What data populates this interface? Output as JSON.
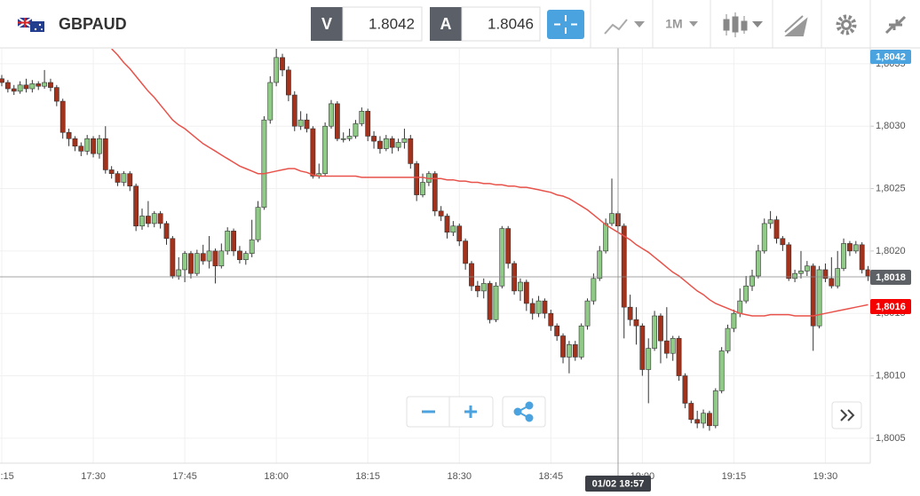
{
  "header": {
    "symbol": "GBPAUD",
    "bid_label": "V",
    "bid": "1.8042",
    "ask_label": "A",
    "ask": "1.8046",
    "timeframe": "1M"
  },
  "price_labels": {
    "top": "1,8042",
    "crosshair": "1,8018",
    "last": "1,8016"
  },
  "crosshair_time": "01/02 18:57",
  "chart_data": {
    "type": "candlestick",
    "categories": [
      "17:15",
      null,
      null,
      null,
      null,
      null,
      null,
      null,
      null,
      null,
      null,
      null,
      null,
      null,
      null,
      "17:30",
      null,
      null,
      null,
      null,
      null,
      null,
      null,
      null,
      null,
      null,
      null,
      null,
      null,
      null,
      "17:45",
      null,
      null,
      null,
      null,
      null,
      null,
      null,
      null,
      null,
      null,
      null,
      null,
      null,
      null,
      "18:00",
      null,
      null,
      null,
      null,
      null,
      null,
      null,
      null,
      null,
      null,
      null,
      null,
      null,
      null,
      "18:15",
      null,
      null,
      null,
      null,
      null,
      null,
      null,
      null,
      null,
      null,
      null,
      null,
      null,
      null,
      "18:30",
      null,
      null,
      null,
      null,
      null,
      null,
      null,
      null,
      null,
      null,
      null,
      null,
      null,
      null,
      "18:45",
      null,
      null,
      null,
      null,
      null,
      null,
      null,
      null,
      null,
      null,
      null,
      null,
      null,
      null,
      "19:00",
      null,
      null,
      null,
      null,
      null,
      null,
      null,
      null,
      null,
      null,
      null,
      null,
      null,
      null,
      "19:15",
      null,
      null,
      null,
      null,
      null,
      null,
      null,
      null,
      null,
      null,
      null,
      null,
      null,
      null,
      "19:30",
      null,
      null,
      null,
      null,
      null,
      null,
      null
    ],
    "open": [
      1.80338,
      1.80335,
      1.8033,
      1.80328,
      1.80333,
      1.8033,
      1.80334,
      1.80332,
      1.80335,
      1.80331,
      1.8032,
      1.80295,
      1.8029,
      1.80284,
      1.8028,
      1.8029,
      1.80278,
      1.8029,
      1.80265,
      1.80262,
      1.80255,
      1.80262,
      1.80252,
      1.8022,
      1.80228,
      1.80222,
      1.8023,
      1.80222,
      1.8021,
      1.8018,
      1.80185,
      1.80198,
      1.80182,
      1.80198,
      1.80192,
      1.802,
      1.80188,
      1.802,
      1.80216,
      1.802,
      1.80193,
      1.80198,
      1.80209,
      1.80235,
      1.80305,
      1.80335,
      1.80355,
      1.80345,
      1.80325,
      1.803,
      1.80305,
      1.80298,
      1.8026,
      1.80262,
      1.803,
      1.80318,
      1.8029,
      1.8029,
      1.80292,
      1.80302,
      1.80312,
      1.80292,
      1.80288,
      1.80282,
      1.8029,
      1.80283,
      1.80287,
      1.8029,
      1.8027,
      1.80245,
      1.80255,
      1.80262,
      1.80232,
      1.80228,
      1.80215,
      1.8022,
      1.80208,
      1.8019,
      1.80172,
      1.80168,
      1.80174,
      1.80145,
      1.80172,
      1.80218,
      1.8019,
      1.80168,
      1.80175,
      1.80158,
      1.8015,
      1.8016,
      1.8015,
      1.8014,
      1.80132,
      1.80115,
      1.80125,
      1.80115,
      1.8014,
      1.8016,
      1.80178,
      1.802,
      1.80222,
      1.8023,
      1.8022,
      1.80155,
      1.80145,
      1.8014,
      1.80105,
      1.80122,
      1.80148,
      1.80128,
      1.80118,
      1.8013,
      1.801,
      1.80078,
      1.80065,
      1.80062,
      1.8007,
      1.8006,
      1.80088,
      1.8012,
      1.80138,
      1.8015,
      1.8016,
      1.80172,
      1.8018,
      1.802,
      1.80222,
      1.80225,
      1.8021,
      1.80205,
      1.80178,
      1.80182,
      1.80184,
      1.80188,
      1.8014,
      1.80185,
      1.80178,
      1.80172,
      1.80186,
      1.80206,
      1.802,
      1.80205,
      1.80185
    ],
    "close": [
      1.80335,
      1.8033,
      1.80328,
      1.80333,
      1.8033,
      1.80334,
      1.80332,
      1.80335,
      1.80331,
      1.8032,
      1.80295,
      1.8029,
      1.80284,
      1.8028,
      1.8029,
      1.80278,
      1.8029,
      1.80265,
      1.80262,
      1.80255,
      1.80262,
      1.80252,
      1.8022,
      1.80228,
      1.80222,
      1.8023,
      1.80222,
      1.8021,
      1.8018,
      1.80185,
      1.80198,
      1.80182,
      1.80198,
      1.80192,
      1.802,
      1.80188,
      1.802,
      1.80216,
      1.802,
      1.80193,
      1.80198,
      1.80209,
      1.80235,
      1.80305,
      1.80335,
      1.80355,
      1.80345,
      1.80325,
      1.803,
      1.80305,
      1.80298,
      1.8026,
      1.80262,
      1.803,
      1.80318,
      1.8029,
      1.8029,
      1.80292,
      1.80302,
      1.80312,
      1.80292,
      1.80288,
      1.80282,
      1.8029,
      1.80283,
      1.80287,
      1.8029,
      1.8027,
      1.80245,
      1.80255,
      1.80262,
      1.80232,
      1.80228,
      1.80215,
      1.8022,
      1.80208,
      1.8019,
      1.80172,
      1.80168,
      1.80174,
      1.80145,
      1.80172,
      1.80218,
      1.8019,
      1.80168,
      1.80175,
      1.80158,
      1.8015,
      1.8016,
      1.8015,
      1.8014,
      1.80132,
      1.80115,
      1.80125,
      1.80115,
      1.8014,
      1.8016,
      1.80178,
      1.802,
      1.80222,
      1.8023,
      1.8022,
      1.80155,
      1.80145,
      1.8014,
      1.80105,
      1.80122,
      1.80148,
      1.80128,
      1.80118,
      1.8013,
      1.801,
      1.80078,
      1.80065,
      1.80062,
      1.8007,
      1.8006,
      1.80088,
      1.8012,
      1.80138,
      1.8015,
      1.8016,
      1.80172,
      1.8018,
      1.802,
      1.80222,
      1.80225,
      1.8021,
      1.80205,
      1.80178,
      1.80182,
      1.80184,
      1.80188,
      1.8014,
      1.80185,
      1.80178,
      1.80172,
      1.80186,
      1.80206,
      1.802,
      1.80205,
      1.80185,
      1.8018
    ],
    "high": [
      1.80341,
      1.80337,
      1.80333,
      1.80336,
      1.80338,
      1.80337,
      1.80336,
      1.80345,
      1.80338,
      1.80333,
      1.80322,
      1.80298,
      1.80292,
      1.80287,
      1.80293,
      1.80292,
      1.80293,
      1.803,
      1.80268,
      1.80264,
      1.80264,
      1.80264,
      1.80254,
      1.80234,
      1.8024,
      1.80232,
      1.80232,
      1.80224,
      1.80212,
      1.80195,
      1.802,
      1.802,
      1.80201,
      1.80205,
      1.80212,
      1.80202,
      1.80206,
      1.80219,
      1.80218,
      1.80204,
      1.802,
      1.80225,
      1.8024,
      1.80308,
      1.8034,
      1.80362,
      1.80358,
      1.80348,
      1.80328,
      1.80312,
      1.8031,
      1.803,
      1.8027,
      1.80303,
      1.80321,
      1.8032,
      1.80295,
      1.80298,
      1.80305,
      1.80315,
      1.80314,
      1.80296,
      1.80292,
      1.80293,
      1.80292,
      1.8029,
      1.80298,
      1.80293,
      1.80272,
      1.80262,
      1.80264,
      1.80264,
      1.80236,
      1.8023,
      1.80224,
      1.80222,
      1.8021,
      1.80192,
      1.80176,
      1.80178,
      1.80176,
      1.80175,
      1.8022,
      1.8022,
      1.80192,
      1.80178,
      1.80177,
      1.80162,
      1.80164,
      1.80162,
      1.80153,
      1.80142,
      1.80134,
      1.80128,
      1.80128,
      1.80142,
      1.80162,
      1.80182,
      1.80204,
      1.80226,
      1.80258,
      1.80232,
      1.80222,
      1.80165,
      1.80155,
      1.80142,
      1.8013,
      1.80152,
      1.8015,
      1.80155,
      1.80132,
      1.80132,
      1.80102,
      1.8008,
      1.80072,
      1.80073,
      1.80072,
      1.8009,
      1.80123,
      1.80141,
      1.80153,
      1.8017,
      1.8018,
      1.80185,
      1.80205,
      1.80226,
      1.80232,
      1.80228,
      1.80212,
      1.80207,
      1.80185,
      1.802,
      1.80192,
      1.8019,
      1.80188,
      1.8019,
      1.80195,
      1.802,
      1.8021,
      1.80208,
      1.80208,
      1.80207,
      1.80188
    ],
    "low": [
      1.80332,
      1.80327,
      1.80325,
      1.80326,
      1.80327,
      1.80327,
      1.80329,
      1.8033,
      1.80328,
      1.80316,
      1.8029,
      1.80284,
      1.8028,
      1.80276,
      1.80277,
      1.80275,
      1.80274,
      1.80262,
      1.80258,
      1.80252,
      1.80252,
      1.80248,
      1.80216,
      1.80217,
      1.80219,
      1.80219,
      1.80218,
      1.80205,
      1.80178,
      1.80177,
      1.80175,
      1.80178,
      1.8018,
      1.80189,
      1.80186,
      1.80174,
      1.80186,
      1.80197,
      1.80196,
      1.8019,
      1.80189,
      1.80195,
      1.80207,
      1.80233,
      1.80302,
      1.80332,
      1.8034,
      1.8032,
      1.80296,
      1.80297,
      1.80295,
      1.80258,
      1.80258,
      1.8026,
      1.80298,
      1.80288,
      1.80287,
      1.80288,
      1.8029,
      1.803,
      1.80288,
      1.80282,
      1.80278,
      1.8028,
      1.80278,
      1.8028,
      1.80282,
      1.80266,
      1.8024,
      1.80243,
      1.80252,
      1.80228,
      1.80224,
      1.8021,
      1.80212,
      1.80204,
      1.80185,
      1.80168,
      1.80163,
      1.80162,
      1.80142,
      1.80143,
      1.8017,
      1.80186,
      1.80165,
      1.8016,
      1.80152,
      1.80145,
      1.80147,
      1.80146,
      1.80136,
      1.80128,
      1.8011,
      1.80102,
      1.80112,
      1.80113,
      1.80137,
      1.80157,
      1.80176,
      1.80198,
      1.8022,
      1.80215,
      1.8013,
      1.8014,
      1.80125,
      1.801,
      1.80078,
      1.8012,
      1.8011,
      1.80114,
      1.80112,
      1.80096,
      1.80074,
      1.80062,
      1.80058,
      1.80058,
      1.80056,
      1.80058,
      1.80086,
      1.80118,
      1.80135,
      1.80147,
      1.80158,
      1.80168,
      1.80178,
      1.80198,
      1.80218,
      1.80206,
      1.802,
      1.80176,
      1.80175,
      1.80178,
      1.8018,
      1.8012,
      1.80138,
      1.80175,
      1.8017,
      1.8017,
      1.80184,
      1.80196,
      1.80198,
      1.80182,
      1.80176
    ],
    "ma": {
      "color": "#e8524a",
      "values": [
        null,
        null,
        null,
        null,
        null,
        null,
        null,
        null,
        null,
        null,
        null,
        null,
        null,
        null,
        null,
        null,
        null,
        null,
        1.80362,
        1.80357,
        1.80351,
        1.80346,
        1.8034,
        1.80334,
        1.80328,
        1.80323,
        1.80317,
        1.80311,
        1.80305,
        1.80301,
        1.80298,
        1.80294,
        1.8029,
        1.80286,
        1.80283,
        1.8028,
        1.80277,
        1.80274,
        1.80271,
        1.80268,
        1.80266,
        1.80264,
        1.80262,
        1.80262,
        1.80263,
        1.80264,
        1.80265,
        1.80266,
        1.80266,
        1.80264,
        1.80263,
        1.80261,
        1.8026,
        1.8026,
        1.8026,
        1.8026,
        1.8026,
        1.8026,
        1.8026,
        1.80259,
        1.80259,
        1.80259,
        1.80259,
        1.80259,
        1.80259,
        1.80259,
        1.80259,
        1.80259,
        1.80259,
        1.80259,
        1.80258,
        1.80258,
        1.80258,
        1.80257,
        1.80257,
        1.80256,
        1.80256,
        1.80255,
        1.80255,
        1.80254,
        1.80254,
        1.80253,
        1.80253,
        1.80252,
        1.80252,
        1.80251,
        1.80251,
        1.8025,
        1.80249,
        1.80248,
        1.80247,
        1.80245,
        1.80244,
        1.80242,
        1.80239,
        1.80236,
        1.80233,
        1.80229,
        1.80225,
        1.80221,
        1.80218,
        1.80215,
        1.80212,
        1.80209,
        1.80205,
        1.80202,
        1.80199,
        1.80195,
        1.80191,
        1.80187,
        1.80183,
        1.8018,
        1.80176,
        1.80172,
        1.80168,
        1.80165,
        1.80161,
        1.80158,
        1.80156,
        1.80154,
        1.80152,
        1.8015,
        1.80149,
        1.80148,
        1.80148,
        1.80148,
        1.80149,
        1.80149,
        1.80149,
        1.80149,
        1.80148,
        1.80148,
        1.80148,
        1.80148,
        1.80149,
        1.8015,
        1.80151,
        1.80152,
        1.80153,
        1.80154,
        1.80155,
        1.80156,
        1.80157
      ]
    },
    "up_color": "#8fca86",
    "down_color": "#a3321c",
    "ylim": [
      1.8003,
      1.80362
    ],
    "yticks": [
      {
        "value": 1.8005,
        "label": "1,8005"
      },
      {
        "value": 1.801,
        "label": "1,8010"
      },
      {
        "value": 1.8015,
        "label": "1,8015"
      },
      {
        "value": 1.802,
        "label": "1,8020"
      },
      {
        "value": 1.8025,
        "label": "1,8025"
      },
      {
        "value": 1.803,
        "label": "1,8030"
      },
      {
        "value": 1.8035,
        "label": "1,8035"
      }
    ],
    "grid": true
  }
}
